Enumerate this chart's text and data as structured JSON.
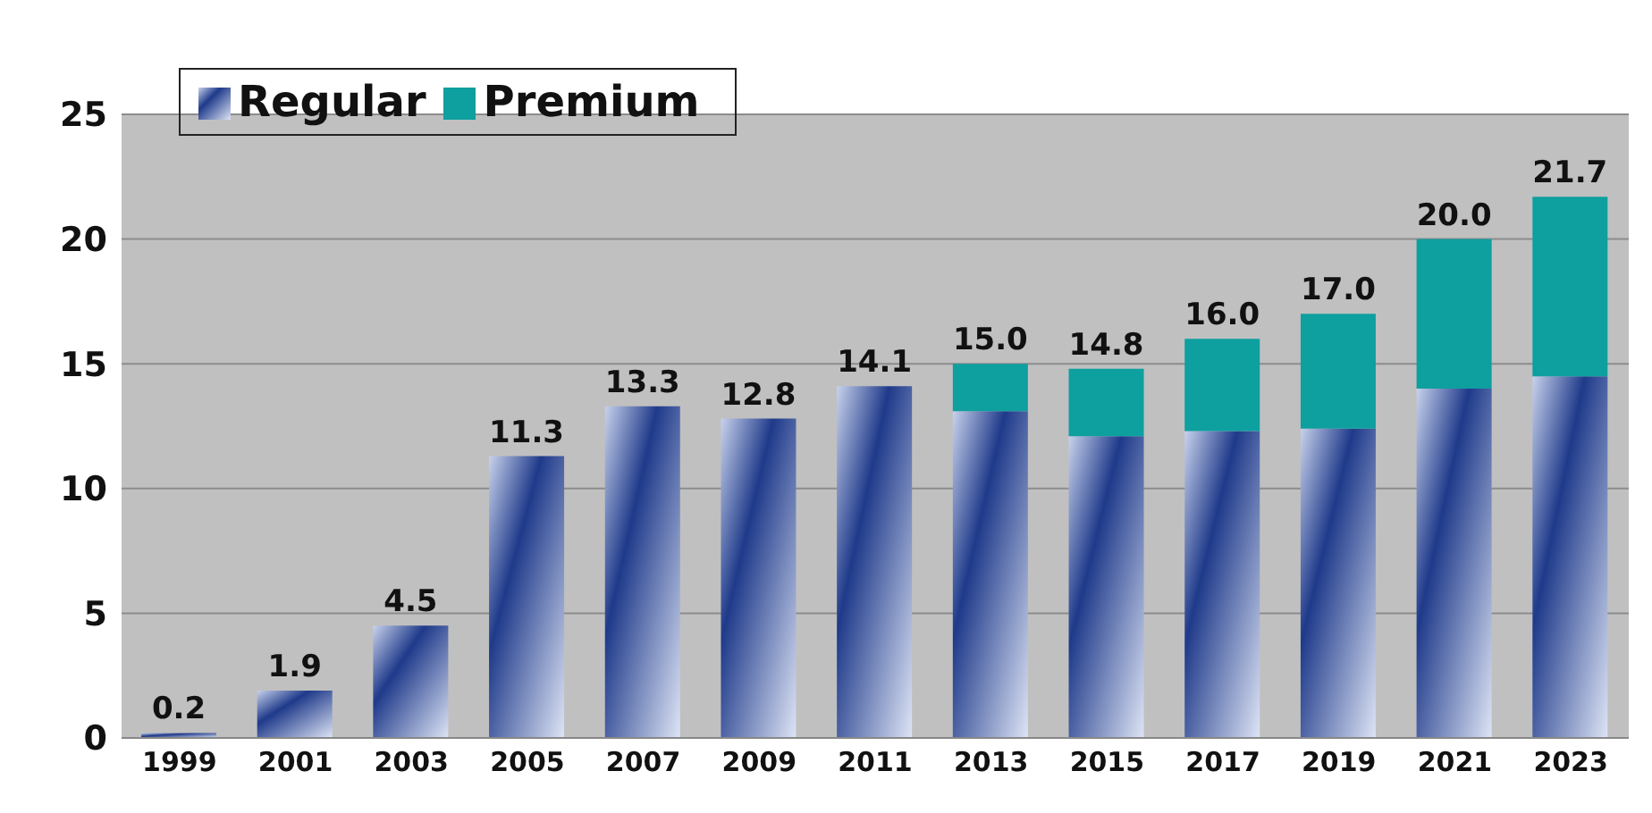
{
  "chart_data": {
    "type": "bar",
    "stacked": true,
    "categories": [
      "1999",
      "2001",
      "2003",
      "2005",
      "2007",
      "2009",
      "2011",
      "2013",
      "2015",
      "2017",
      "2019",
      "2021",
      "2023"
    ],
    "series": [
      {
        "name": "Regular",
        "color": "#1f3a8a",
        "values": [
          0.2,
          1.9,
          4.5,
          11.3,
          13.3,
          12.8,
          14.1,
          13.1,
          12.1,
          12.3,
          12.4,
          14.0,
          14.5
        ]
      },
      {
        "name": "Premium",
        "color": "#0e9f9f",
        "values": [
          null,
          null,
          null,
          null,
          null,
          null,
          null,
          1.9,
          2.7,
          3.7,
          4.6,
          6.0,
          7.2
        ]
      }
    ],
    "totals": [
      "0.2",
      "1.9",
      "4.5",
      "11.3",
      "13.3",
      "12.8",
      "14.1",
      "15.0",
      "14.8",
      "16.0",
      "17.0",
      "20.0",
      "21.7"
    ],
    "ylim": [
      0,
      25
    ],
    "yticks": [
      0,
      5,
      10,
      15,
      20,
      25
    ],
    "grid": "y",
    "legend": "top left"
  }
}
